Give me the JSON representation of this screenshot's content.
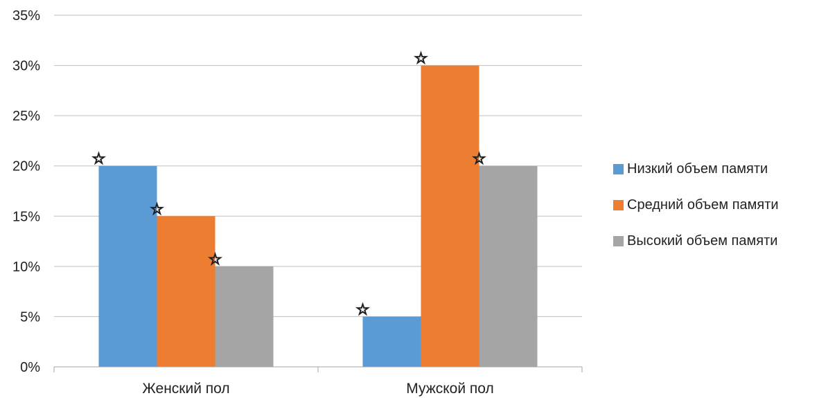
{
  "chart_data": {
    "type": "bar",
    "categories": [
      "Женский пол",
      "Мужской пол"
    ],
    "series": [
      {
        "name": "Низкий объем памяти",
        "values": [
          20,
          5
        ],
        "color": "#5B9BD5"
      },
      {
        "name": "Средний объем памяти",
        "values": [
          15,
          30
        ],
        "color": "#ED7D31"
      },
      {
        "name": "Высокий объем памяти",
        "values": [
          10,
          20
        ],
        "color": "#A5A5A5"
      }
    ],
    "ylim": [
      0,
      35
    ],
    "yticks": [
      0,
      5,
      10,
      15,
      20,
      25,
      30,
      35
    ],
    "ytick_labels": [
      "0%",
      "5%",
      "10%",
      "15%",
      "20%",
      "25%",
      "30%",
      "35%"
    ],
    "bar_marker": "☆",
    "grid": true,
    "legend_position": "right"
  }
}
